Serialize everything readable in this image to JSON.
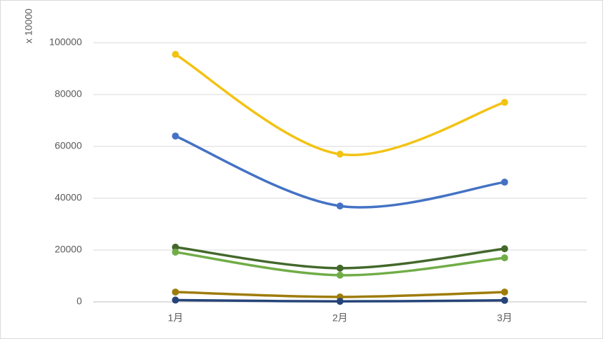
{
  "chart_data": {
    "type": "line",
    "smooth": true,
    "y_axis_label": "x 10000",
    "categories": [
      "1月",
      "2月",
      "3月"
    ],
    "series": [
      {
        "color": "#f2c314",
        "values": [
          95500,
          57000,
          77000
        ]
      },
      {
        "color": "#4472c4",
        "values": [
          64000,
          37000,
          46200
        ]
      },
      {
        "color": "#43682b",
        "values": [
          21100,
          13000,
          20500
        ]
      },
      {
        "color": "#70ad47",
        "values": [
          19200,
          10300,
          17000
        ]
      },
      {
        "color": "#9e7c0c",
        "values": [
          3800,
          1900,
          3800
        ]
      },
      {
        "color": "#264478",
        "values": [
          700,
          200,
          600
        ]
      }
    ],
    "ylim": [
      0,
      100000
    ],
    "yticks": [
      0,
      20000,
      40000,
      60000,
      80000,
      100000
    ],
    "grid": true
  }
}
